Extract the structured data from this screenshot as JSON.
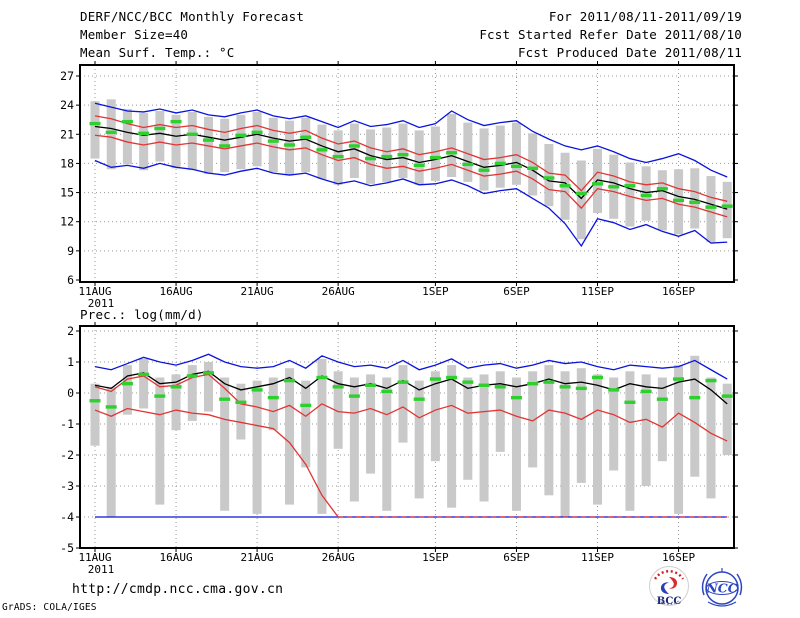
{
  "header": {
    "title": "DERF/NCC/BCC Monthly Forecast",
    "member_size": "Member Size=40",
    "for_range": "For 2011/08/11-2011/09/19",
    "refer_date": "Fcst Started Refer Date 2011/08/10",
    "produced_date": "Fcst Produced Date 2011/08/11"
  },
  "footer": {
    "url": "http://cmdp.ncc.cma.gov.cn",
    "grads_credit": "GrADS: COLA/IGES",
    "bcc_label": "BCC",
    "ncc_label": "NCC"
  },
  "colors": {
    "blue_line": "#0a14dc",
    "red_line": "#e23434",
    "black_line": "#000000",
    "green_marker": "#2ed02e",
    "gray_bar": "#c9c9c9",
    "grid": "#999999",
    "frame": "#000000"
  },
  "charts_common": {
    "n_days": 40,
    "x_tick_labels": [
      "11AUG",
      "16AUG",
      "21AUG",
      "26AUG",
      "1SEP",
      "6SEP",
      "11SEP",
      "16SEP"
    ],
    "x_tick_days": [
      0,
      5,
      10,
      15,
      21,
      26,
      31,
      36
    ],
    "year_label": "2011"
  },
  "chart_data": [
    {
      "type": "line",
      "title": "Mean Surf. Temp.: °C",
      "ylim": [
        6,
        27
      ],
      "y_ticks": [
        27,
        24,
        21,
        18,
        15,
        12,
        9,
        6
      ],
      "grid": true,
      "legend_position": "none",
      "bars": {
        "name": "ensemble-spread-bar",
        "top": [
          24.4,
          24.6,
          23.6,
          23.2,
          23.4,
          23.0,
          23.3,
          22.8,
          22.6,
          23.0,
          23.3,
          22.7,
          22.4,
          22.7,
          22.0,
          21.4,
          22.1,
          21.5,
          21.7,
          22.1,
          21.4,
          21.8,
          23.1,
          22.2,
          21.6,
          21.9,
          22.2,
          21.1,
          20.0,
          19.1,
          18.3,
          19.5,
          18.9,
          18.1,
          17.7,
          17.3,
          17.4,
          17.5,
          16.7,
          16.1
        ],
        "bottom": [
          18.5,
          17.4,
          17.9,
          17.3,
          18.2,
          17.5,
          17.3,
          16.9,
          17.1,
          17.4,
          17.7,
          17.1,
          16.8,
          17.1,
          16.4,
          15.8,
          16.5,
          15.9,
          16.1,
          16.5,
          15.8,
          16.2,
          16.6,
          16.1,
          15.2,
          15.5,
          15.8,
          14.7,
          13.6,
          12.2,
          10.2,
          12.9,
          12.3,
          11.5,
          12.1,
          11.1,
          10.7,
          11.3,
          9.9,
          10.3
        ]
      },
      "series": [
        {
          "name": "upper-envelope-blue",
          "color": "#0a14dc",
          "values": [
            24.2,
            23.8,
            23.4,
            23.3,
            23.6,
            23.2,
            23.5,
            23.0,
            22.8,
            23.2,
            23.5,
            22.9,
            22.6,
            22.9,
            22.3,
            21.7,
            22.4,
            21.8,
            22.0,
            22.4,
            21.7,
            22.1,
            23.4,
            22.5,
            21.9,
            22.2,
            22.4,
            21.3,
            20.5,
            19.8,
            19.4,
            19.8,
            19.2,
            18.5,
            18.1,
            18.5,
            19.0,
            18.3,
            17.3,
            16.6
          ]
        },
        {
          "name": "lower-envelope-blue",
          "color": "#0a14dc",
          "values": [
            18.3,
            17.6,
            17.8,
            17.5,
            18.0,
            17.6,
            17.4,
            17.0,
            16.8,
            17.2,
            17.5,
            17.0,
            16.8,
            17.0,
            16.4,
            15.9,
            16.2,
            15.7,
            16.0,
            16.4,
            15.8,
            15.9,
            16.3,
            15.7,
            14.9,
            15.2,
            15.4,
            14.4,
            13.4,
            11.8,
            9.5,
            12.3,
            11.9,
            11.2,
            11.7,
            11.0,
            10.5,
            11.1,
            9.8,
            9.9
          ]
        },
        {
          "name": "upper-band-red",
          "color": "#e23434",
          "values": [
            22.9,
            22.6,
            22.1,
            21.7,
            22.0,
            21.7,
            21.9,
            21.5,
            21.2,
            21.6,
            21.9,
            21.4,
            21.1,
            21.4,
            20.6,
            20.0,
            20.3,
            19.6,
            19.2,
            19.5,
            18.9,
            19.2,
            19.6,
            19.0,
            18.4,
            18.6,
            18.9,
            18.1,
            17.0,
            16.8,
            15.2,
            17.1,
            16.7,
            16.1,
            15.8,
            16.0,
            15.4,
            15.1,
            14.5,
            14.1
          ]
        },
        {
          "name": "lower-band-red",
          "color": "#e23434",
          "values": [
            20.9,
            20.7,
            20.2,
            19.9,
            20.2,
            19.9,
            20.1,
            19.8,
            19.5,
            19.8,
            20.1,
            19.7,
            19.4,
            19.6,
            18.9,
            18.3,
            18.6,
            17.9,
            17.5,
            17.7,
            17.2,
            17.5,
            17.9,
            17.3,
            16.7,
            16.9,
            17.2,
            16.4,
            15.3,
            15.1,
            13.4,
            15.4,
            15.1,
            14.6,
            14.2,
            14.4,
            13.8,
            13.5,
            13.0,
            12.5
          ]
        },
        {
          "name": "ensemble-mean-black",
          "color": "#000000",
          "values": [
            21.8,
            21.6,
            21.2,
            20.9,
            21.1,
            20.8,
            21.0,
            20.7,
            20.4,
            20.7,
            21.0,
            20.6,
            20.3,
            20.5,
            19.8,
            19.2,
            19.5,
            18.8,
            18.4,
            18.6,
            18.1,
            18.4,
            18.8,
            18.2,
            17.6,
            17.8,
            18.1,
            17.3,
            16.2,
            16.0,
            14.4,
            16.3,
            16.0,
            15.4,
            15.0,
            15.2,
            14.6,
            14.3,
            13.8,
            13.3
          ]
        }
      ],
      "markers": {
        "name": "daily-green-marker",
        "color": "#2ed02e",
        "values": [
          22.1,
          21.2,
          22.3,
          21.1,
          21.6,
          22.3,
          21.0,
          20.4,
          19.8,
          20.9,
          21.2,
          20.3,
          19.9,
          20.7,
          19.4,
          18.7,
          19.8,
          18.5,
          18.7,
          18.9,
          17.8,
          18.6,
          19.1,
          17.9,
          17.3,
          18.0,
          17.7,
          17.5,
          16.5,
          15.7,
          14.9,
          15.9,
          15.6,
          15.7,
          14.7,
          15.4,
          14.2,
          14.0,
          13.5,
          13.6
        ]
      }
    },
    {
      "type": "line",
      "title": "Prec.: log(mm/d)",
      "ylim": [
        -5,
        2
      ],
      "y_ticks": [
        2,
        1,
        0,
        -1,
        -2,
        -3,
        -4,
        -5
      ],
      "grid": true,
      "legend_position": "none",
      "bars": {
        "name": "ensemble-spread-bar",
        "top": [
          0.3,
          0.2,
          0.9,
          1.1,
          0.5,
          0.6,
          0.9,
          1.0,
          0.5,
          0.3,
          0.4,
          0.5,
          0.8,
          0.4,
          1.1,
          0.7,
          0.5,
          0.6,
          0.5,
          0.9,
          0.4,
          0.7,
          0.9,
          0.5,
          0.6,
          0.7,
          0.5,
          0.7,
          0.9,
          0.7,
          0.8,
          0.6,
          0.5,
          0.7,
          0.6,
          0.5,
          0.9,
          1.2,
          0.5,
          0.3
        ],
        "bottom": [
          -1.7,
          -4.0,
          -0.7,
          -0.5,
          -3.6,
          -1.2,
          -0.9,
          -0.6,
          -3.8,
          -1.5,
          -3.9,
          -1.2,
          -3.6,
          -2.4,
          -3.9,
          -1.8,
          -3.5,
          -2.6,
          -3.8,
          -1.6,
          -3.4,
          -2.2,
          -3.7,
          -2.8,
          -3.5,
          -1.9,
          -3.8,
          -2.4,
          -3.3,
          -4.0,
          -2.9,
          -3.6,
          -2.5,
          -3.8,
          -3.0,
          -2.2,
          -3.9,
          -2.7,
          -3.4,
          -2.0
        ]
      },
      "series": [
        {
          "name": "upper-envelope-blue",
          "color": "#0a14dc",
          "values": [
            0.85,
            0.75,
            0.95,
            1.15,
            1.0,
            0.9,
            1.05,
            1.25,
            1.0,
            0.85,
            0.8,
            0.85,
            1.05,
            0.8,
            1.2,
            1.0,
            0.85,
            0.9,
            0.8,
            1.05,
            0.75,
            0.9,
            1.1,
            0.8,
            0.9,
            0.95,
            0.8,
            0.9,
            1.05,
            0.95,
            1.0,
            0.85,
            0.75,
            0.9,
            0.85,
            0.8,
            0.85,
            1.05,
            0.75,
            0.45
          ]
        },
        {
          "name": "lower-envelope-blue",
          "color": "#0a14dc",
          "values": [
            -4,
            -4,
            -4,
            -4,
            -4,
            -4,
            -4,
            -4,
            -4,
            -4,
            -4,
            -4,
            -4,
            -4,
            -4,
            -4,
            -4,
            -4,
            -4,
            -4,
            -4,
            -4,
            -4,
            -4,
            -4,
            -4,
            -4,
            -4,
            -4,
            -4,
            -4,
            -4,
            -4,
            -4,
            -4,
            -4,
            -4,
            -4,
            -4,
            -4
          ]
        },
        {
          "name": "lower-band-red",
          "color": "#e23434",
          "dash_when_at": -4,
          "values": [
            -0.55,
            -0.75,
            -0.5,
            -0.6,
            -0.7,
            -0.55,
            -0.65,
            -0.7,
            -0.85,
            -0.95,
            -1.05,
            -1.15,
            -1.6,
            -2.3,
            -3.3,
            -4,
            -4,
            -4,
            -4,
            -4,
            -4,
            -4,
            -4,
            -4,
            -4,
            -4,
            -4,
            -4,
            -4,
            -4,
            -4,
            -4,
            -4,
            -4,
            -4,
            -4,
            -4,
            -4,
            -4,
            -4
          ]
        },
        {
          "name": "upper-band-red",
          "color": "#e23434",
          "values": [
            0.2,
            0.05,
            0.45,
            0.55,
            0.2,
            0.25,
            0.5,
            0.6,
            0.15,
            -0.35,
            -0.45,
            -0.6,
            -0.4,
            -0.75,
            -0.35,
            -0.6,
            -0.65,
            -0.5,
            -0.7,
            -0.45,
            -0.8,
            -0.55,
            -0.4,
            -0.65,
            -0.6,
            -0.55,
            -0.75,
            -0.9,
            -0.55,
            -0.65,
            -0.85,
            -0.55,
            -0.7,
            -0.95,
            -0.85,
            -1.1,
            -0.65,
            -0.95,
            -1.3,
            -1.55
          ]
        },
        {
          "name": "ensemble-mean-black",
          "color": "#000000",
          "values": [
            0.25,
            0.15,
            0.55,
            0.65,
            0.3,
            0.35,
            0.6,
            0.7,
            0.3,
            0.1,
            0.2,
            0.3,
            0.5,
            0.15,
            0.55,
            0.3,
            0.2,
            0.3,
            0.15,
            0.4,
            0.1,
            0.3,
            0.45,
            0.15,
            0.25,
            0.3,
            0.2,
            0.3,
            0.45,
            0.3,
            0.35,
            0.25,
            0.1,
            0.3,
            0.2,
            0.15,
            0.35,
            0.45,
            0.1,
            -0.35
          ]
        }
      ],
      "markers": {
        "name": "daily-green-marker",
        "color": "#2ed02e",
        "values": [
          -0.25,
          -0.45,
          0.3,
          0.6,
          -0.1,
          0.2,
          0.55,
          0.65,
          -0.2,
          -0.3,
          0.1,
          -0.15,
          0.4,
          -0.4,
          0.5,
          0.2,
          -0.1,
          0.25,
          0.05,
          0.35,
          -0.2,
          0.45,
          0.5,
          0.35,
          0.25,
          0.2,
          -0.15,
          0.3,
          0.35,
          0.2,
          0.15,
          0.5,
          0.1,
          -0.3,
          0.05,
          -0.2,
          0.45,
          -0.15,
          0.4,
          -0.1
        ]
      }
    }
  ]
}
